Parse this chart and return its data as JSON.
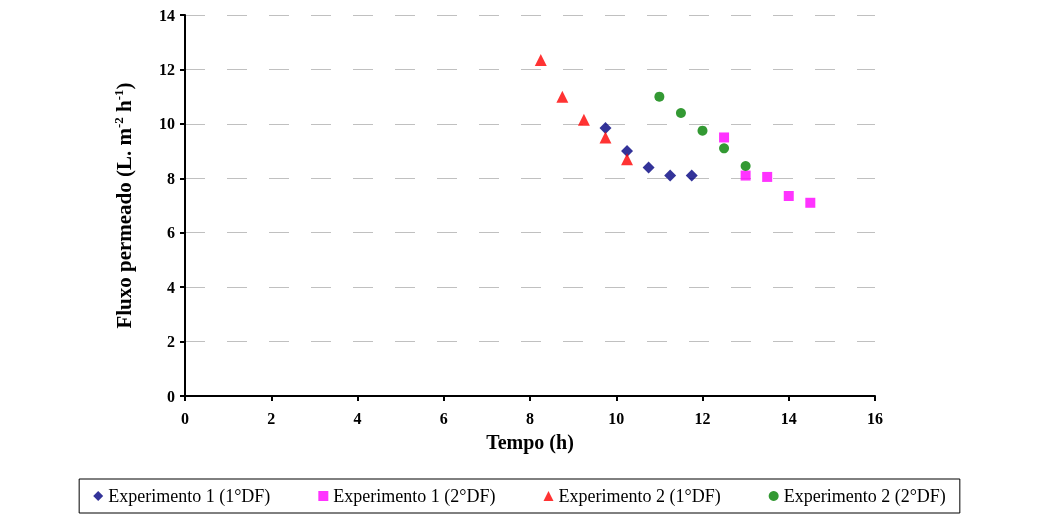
{
  "chart_data": {
    "type": "scatter",
    "xlabel": "Tempo (h)",
    "ylabel": "Fluxo permeado (L. m$^{-2}$ h$^{-1}$)",
    "xlim": [
      0,
      16
    ],
    "xticks": [
      0,
      2,
      4,
      6,
      8,
      10,
      12,
      14,
      16
    ],
    "ylim": [
      0,
      14
    ],
    "yticks": [
      0,
      2,
      4,
      6,
      8,
      10,
      12,
      14
    ],
    "grid": "y",
    "legend": "bottom",
    "series": [
      {
        "name": "Experimento 1 (1°DF)",
        "color": "#000080",
        "marker": "diamond",
        "x": [
          9.75,
          10.25,
          10.75,
          11.25,
          11.75
        ],
        "values": [
          9.85,
          9.0,
          8.4,
          8.1,
          8.1
        ]
      },
      {
        "name": "Experimento 1 (2°DF)",
        "color": "#ff00ff",
        "marker": "square",
        "x": [
          12.5,
          13,
          13.5,
          14,
          14.5
        ],
        "values": [
          9.5,
          8.1,
          8.05,
          7.35,
          7.1
        ]
      },
      {
        "name": "Experimento 2 (1°DF)",
        "color": "#ff0000",
        "marker": "triangle",
        "x": [
          8.25,
          8.75,
          9.25,
          9.75,
          10.25
        ],
        "values": [
          12.35,
          11.0,
          10.15,
          9.5,
          8.7
        ]
      },
      {
        "name": "Experimento 2 (2°DF)",
        "color": "#008000",
        "marker": "circle",
        "x": [
          11,
          11.5,
          12,
          12.5,
          13
        ],
        "values": [
          11.0,
          10.4,
          9.75,
          9.1,
          8.45
        ]
      }
    ]
  }
}
